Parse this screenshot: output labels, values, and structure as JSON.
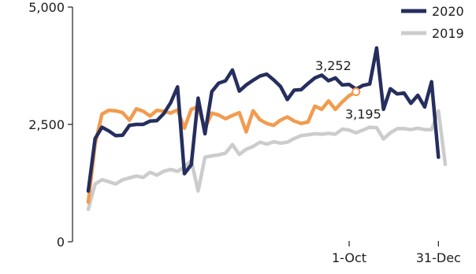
{
  "chart_data": {
    "type": "line",
    "title": "",
    "xlabel": "",
    "ylabel": "",
    "ylim": [
      0,
      5000
    ],
    "y_ticks": [
      {
        "value": 0,
        "label": "0"
      },
      {
        "value": 2500,
        "label": "2,500"
      },
      {
        "value": 5000,
        "label": "5,000"
      }
    ],
    "x_ticks": [
      {
        "week": 39,
        "label": "1-Oct"
      },
      {
        "week": 52,
        "label": "31-Dec"
      }
    ],
    "grid": false,
    "legend_position": "top-right",
    "series": [
      {
        "name": "2020",
        "color": "#262e5e",
        "weeks": [
          1,
          2,
          3,
          4,
          5,
          6,
          7,
          8,
          9,
          10,
          11,
          12,
          13,
          14,
          15,
          16,
          17,
          18,
          19,
          20,
          21,
          22,
          23,
          24,
          25,
          26,
          27,
          28,
          29,
          30,
          31,
          32,
          33,
          34,
          35,
          36,
          37,
          38,
          39,
          40,
          41,
          42,
          43,
          44,
          45,
          46,
          47,
          48,
          49,
          50,
          51,
          52,
          53
        ],
        "values": [
          1080,
          2200,
          2440,
          2360,
          2260,
          2270,
          2480,
          2500,
          2500,
          2570,
          2580,
          2730,
          2960,
          3300,
          1450,
          1640,
          3060,
          2300,
          3200,
          3380,
          3430,
          3660,
          3210,
          3340,
          3440,
          3530,
          3570,
          3450,
          3310,
          3030,
          3230,
          3240,
          3370,
          3490,
          3550,
          3430,
          3490,
          3340,
          3350,
          3252,
          3330,
          3360,
          4130,
          2820,
          3260,
          3150,
          3170,
          2950,
          3120,
          2870,
          3410,
          1800,
          null
        ]
      },
      {
        "name": "2019",
        "color": "#cccccc",
        "weeks": [
          1,
          2,
          3,
          4,
          5,
          6,
          7,
          8,
          9,
          10,
          11,
          12,
          13,
          14,
          15,
          16,
          17,
          18,
          19,
          20,
          21,
          22,
          23,
          24,
          25,
          26,
          27,
          28,
          29,
          30,
          31,
          32,
          33,
          34,
          35,
          36,
          37,
          38,
          39,
          40,
          41,
          42,
          43,
          44,
          45,
          46,
          47,
          48,
          49,
          50,
          51,
          52,
          53
        ],
        "values": [
          690,
          1230,
          1320,
          1280,
          1230,
          1320,
          1360,
          1400,
          1370,
          1480,
          1420,
          1500,
          1540,
          1500,
          1590,
          1730,
          1080,
          1800,
          1830,
          1850,
          1890,
          2070,
          1860,
          1970,
          2030,
          2120,
          2080,
          2130,
          2100,
          2120,
          2200,
          2260,
          2280,
          2300,
          2290,
          2310,
          2290,
          2400,
          2380,
          2320,
          2380,
          2440,
          2430,
          2190,
          2320,
          2410,
          2410,
          2390,
          2420,
          2390,
          2390,
          2790,
          1650
        ]
      }
    ],
    "extra_series": [
      {
        "name": "",
        "color": "#f29b4e",
        "weeks": [
          1,
          2,
          3,
          4,
          5,
          6,
          7,
          8,
          9,
          10,
          11,
          12,
          13,
          14,
          15,
          16,
          17,
          18,
          19,
          20,
          21,
          22,
          23,
          24,
          25,
          26,
          27,
          28,
          29,
          30,
          31,
          32,
          33,
          34,
          35,
          36,
          37,
          38,
          39,
          40
        ],
        "values": [
          840,
          2080,
          2720,
          2800,
          2790,
          2750,
          2590,
          2830,
          2780,
          2680,
          2800,
          2780,
          2740,
          2810,
          2420,
          2820,
          2880,
          2420,
          2740,
          2700,
          2620,
          2690,
          2750,
          2340,
          2790,
          2600,
          2520,
          2480,
          2590,
          2660,
          2570,
          2520,
          2550,
          2890,
          2820,
          3000,
          2820,
          2980,
          3110,
          3195
        ]
      }
    ],
    "annotations": [
      {
        "text": "3,252",
        "week": 40,
        "value": 3252,
        "placement": "above-left"
      },
      {
        "text": "3,195",
        "week": 40,
        "value": 3195,
        "placement": "below-right"
      }
    ]
  }
}
